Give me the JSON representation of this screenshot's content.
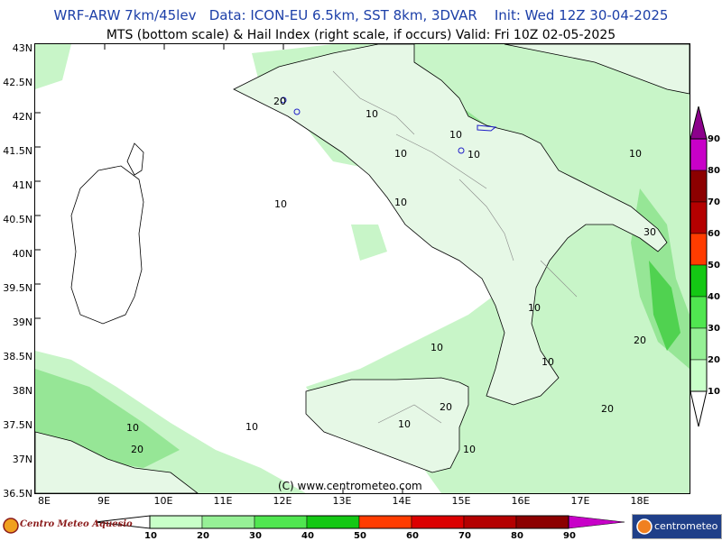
{
  "header": {
    "title_line1": "WRF-ARW 7km/45lev   Data: ICON-EU 6.5km, SST 8km, 3DVAR    Init: Wed 12Z 30-04-2025",
    "title_line2": "MTS (bottom scale) & Hail Index (right scale, if occurs) Valid: Fri 10Z 02-05-2025"
  },
  "axes": {
    "lat_labels": [
      "43N",
      "42.5N",
      "42N",
      "41.5N",
      "41N",
      "40.5N",
      "40N",
      "39.5N",
      "39N",
      "38.5N",
      "38N",
      "37.5N",
      "37N",
      "36.5N"
    ],
    "lon_labels": [
      "8E",
      "9E",
      "10E",
      "11E",
      "12E",
      "13E",
      "14E",
      "15E",
      "16E",
      "17E",
      "18E"
    ]
  },
  "contour_labels": [
    "20",
    "10",
    "10",
    "10",
    "10",
    "10",
    "10",
    "10",
    "30",
    "10",
    "10",
    "20",
    "10",
    "20",
    "20",
    "10",
    "10",
    "20",
    "10",
    "10"
  ],
  "copyright": "(C) www.centrometeo.com",
  "logos": {
    "left": "Centro Meteo Aquesio",
    "right": "centrometeo"
  },
  "mts_scale": {
    "labels": [
      "10",
      "20",
      "30",
      "40",
      "50",
      "60",
      "70",
      "80",
      "90"
    ],
    "colors": [
      "#c8ffc8",
      "#96f096",
      "#50e650",
      "#14c814",
      "#ff3c00",
      "#dc0000",
      "#b40000",
      "#8c0000",
      "#c800c8",
      "#8c008c"
    ]
  },
  "hail_scale": {
    "labels": [
      "90",
      "80",
      "70",
      "60",
      "50",
      "40",
      "30",
      "20",
      "10"
    ],
    "colors": [
      "#8c008c",
      "#c800c8",
      "#8c0000",
      "#b40000",
      "#ff3c00",
      "#14c814",
      "#50e650",
      "#96f096",
      "#c8ffc8"
    ]
  }
}
